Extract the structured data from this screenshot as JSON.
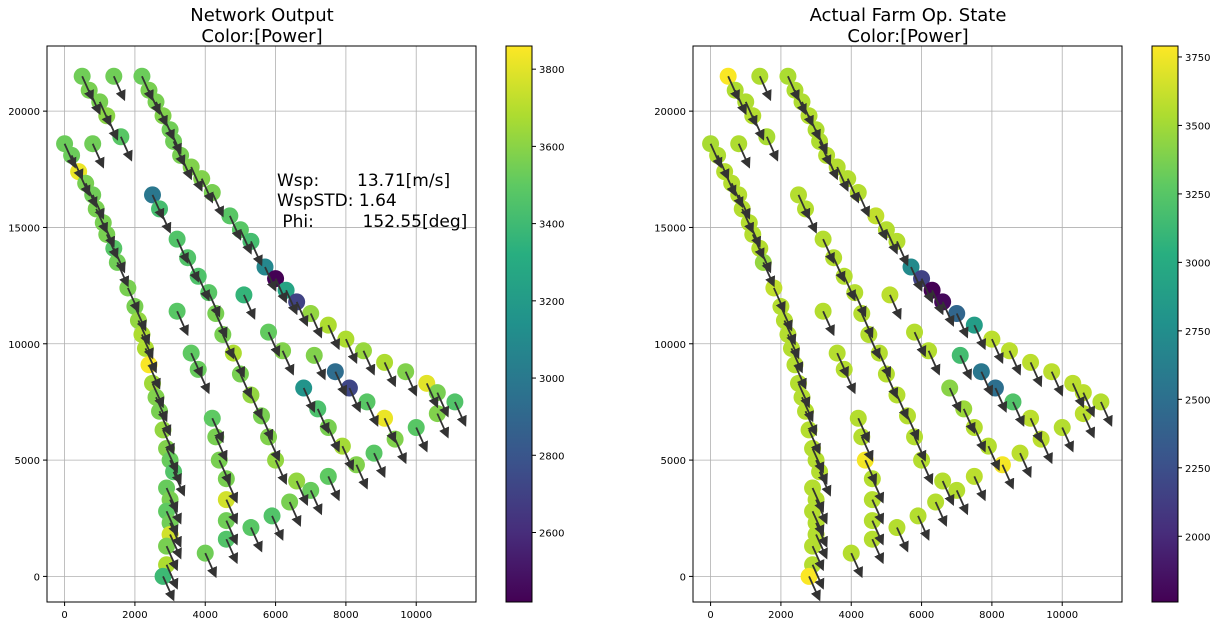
{
  "chart_data": [
    {
      "type": "scatter",
      "title": "Network Output",
      "subtitle": "Color:[Power]",
      "xlim": [
        -500,
        11700
      ],
      "ylim": [
        -1100,
        22800
      ],
      "xticks": [
        0,
        2000,
        4000,
        6000,
        8000,
        10000
      ],
      "yticks": [
        0,
        5000,
        10000,
        15000,
        20000
      ],
      "grid": true,
      "colorbar": {
        "colormap": "viridis",
        "range": [
          2420,
          3860
        ],
        "ticks": [
          2600,
          2800,
          3000,
          3200,
          3400,
          3600,
          3800
        ]
      },
      "annotation": {
        "lines": [
          "Wsp:       13.71[m/s]",
          "WspSTD: 1.64",
          " Phi:         152.55[deg]"
        ]
      },
      "arrow_direction": "down-right",
      "points": [
        [
          500,
          21500,
          3540
        ],
        [
          1400,
          21500,
          3540
        ],
        [
          2200,
          21500,
          3530
        ],
        [
          700,
          20900,
          3560
        ],
        [
          2400,
          20900,
          3560
        ],
        [
          1000,
          20400,
          3560
        ],
        [
          2600,
          20400,
          3560
        ],
        [
          1200,
          19800,
          3600
        ],
        [
          2800,
          19800,
          3580
        ],
        [
          1600,
          18900,
          3480
        ],
        [
          3000,
          19200,
          3540
        ],
        [
          3100,
          18700,
          3540
        ],
        [
          0,
          18600,
          3530
        ],
        [
          800,
          18600,
          3540
        ],
        [
          200,
          18100,
          3530
        ],
        [
          3300,
          18100,
          3560
        ],
        [
          400,
          17400,
          3820
        ],
        [
          3600,
          17600,
          3580
        ],
        [
          600,
          16900,
          3560
        ],
        [
          3900,
          17100,
          3580
        ],
        [
          800,
          16400,
          3540
        ],
        [
          4200,
          16500,
          3560
        ],
        [
          2500,
          16400,
          2990
        ],
        [
          900,
          15800,
          3560
        ],
        [
          2700,
          15800,
          3420
        ],
        [
          1100,
          15200,
          3560
        ],
        [
          4700,
          15500,
          3480
        ],
        [
          1200,
          14700,
          3560
        ],
        [
          5000,
          14900,
          3480
        ],
        [
          1400,
          14100,
          3470
        ],
        [
          3200,
          14500,
          3460
        ],
        [
          5300,
          14400,
          3420
        ],
        [
          1500,
          13500,
          3540
        ],
        [
          3500,
          13700,
          3460
        ],
        [
          5700,
          13300,
          3080
        ],
        [
          6000,
          12800,
          2420
        ],
        [
          3800,
          12900,
          3450
        ],
        [
          1800,
          12400,
          3560
        ],
        [
          4100,
          12200,
          3480
        ],
        [
          6300,
          12300,
          3260
        ],
        [
          5100,
          12100,
          3360
        ],
        [
          6600,
          11800,
          2700
        ],
        [
          2000,
          11600,
          3560
        ],
        [
          3200,
          11400,
          3480
        ],
        [
          4300,
          11300,
          3560
        ],
        [
          7000,
          11300,
          3620
        ],
        [
          2100,
          11000,
          3620
        ],
        [
          2200,
          10400,
          3680
        ],
        [
          4500,
          10400,
          3560
        ],
        [
          5800,
          10500,
          3510
        ],
        [
          7500,
          10800,
          3680
        ],
        [
          2300,
          9800,
          3680
        ],
        [
          8000,
          10200,
          3680
        ],
        [
          3600,
          9600,
          3500
        ],
        [
          4800,
          9600,
          3680
        ],
        [
          6200,
          9700,
          3580
        ],
        [
          7100,
          9500,
          3580
        ],
        [
          8500,
          9700,
          3630
        ],
        [
          2400,
          9100,
          3850
        ],
        [
          9100,
          9200,
          3680
        ],
        [
          3800,
          8900,
          3520
        ],
        [
          7700,
          8800,
          2930
        ],
        [
          9700,
          8800,
          3580
        ],
        [
          2500,
          8300,
          3650
        ],
        [
          5000,
          8700,
          3560
        ],
        [
          10300,
          8300,
          3800
        ],
        [
          6800,
          8100,
          3160
        ],
        [
          8100,
          8100,
          2720
        ],
        [
          2600,
          7700,
          3580
        ],
        [
          5300,
          7800,
          3620
        ],
        [
          11100,
          7500,
          3460
        ],
        [
          8600,
          7500,
          3480
        ],
        [
          10600,
          7900,
          3560
        ],
        [
          7200,
          7200,
          3440
        ],
        [
          2700,
          7100,
          3560
        ],
        [
          4200,
          6800,
          3500
        ],
        [
          5600,
          6900,
          3560
        ],
        [
          9100,
          6800,
          3820
        ],
        [
          10600,
          7000,
          3580
        ],
        [
          2800,
          6300,
          3620
        ],
        [
          7500,
          6400,
          3560
        ],
        [
          10000,
          6400,
          3480
        ],
        [
          4300,
          6000,
          3560
        ],
        [
          5800,
          6000,
          3580
        ],
        [
          9400,
          5900,
          3580
        ],
        [
          2900,
          5500,
          3580
        ],
        [
          7900,
          5600,
          3660
        ],
        [
          3000,
          5000,
          3520
        ],
        [
          4400,
          5000,
          3560
        ],
        [
          6000,
          5000,
          3620
        ],
        [
          8300,
          4800,
          3580
        ],
        [
          8800,
          5300,
          3480
        ],
        [
          3100,
          4500,
          3460
        ],
        [
          6600,
          4100,
          3620
        ],
        [
          7500,
          4300,
          3500
        ],
        [
          4600,
          4200,
          3560
        ],
        [
          2900,
          3800,
          3520
        ],
        [
          7000,
          3700,
          3520
        ],
        [
          3000,
          3300,
          3560
        ],
        [
          4600,
          3300,
          3760
        ],
        [
          6400,
          3200,
          3560
        ],
        [
          2900,
          2800,
          3500
        ],
        [
          4600,
          2400,
          3540
        ],
        [
          5300,
          2100,
          3480
        ],
        [
          5900,
          2600,
          3460
        ],
        [
          3000,
          2300,
          3540
        ],
        [
          3000,
          1800,
          3760
        ],
        [
          4600,
          1600,
          3460
        ],
        [
          2900,
          1300,
          3560
        ],
        [
          4000,
          1000,
          3540
        ],
        [
          2900,
          500,
          3680
        ],
        [
          2800,
          0,
          3390
        ]
      ]
    },
    {
      "type": "scatter",
      "title": "Actual Farm Op. State",
      "subtitle": "Color:[Power]",
      "xlim": [
        -500,
        11700
      ],
      "ylim": [
        -1100,
        22800
      ],
      "xticks": [
        0,
        2000,
        4000,
        6000,
        8000,
        10000
      ],
      "yticks": [
        0,
        5000,
        10000,
        15000,
        20000
      ],
      "grid": true,
      "colorbar": {
        "colormap": "viridis",
        "range": [
          1760,
          3790
        ],
        "ticks": [
          2000,
          2250,
          2500,
          2750,
          3000,
          3250,
          3500,
          3750
        ]
      },
      "arrow_direction": "down-right",
      "points": [
        [
          500,
          21500,
          3780
        ],
        [
          1400,
          21500,
          3540
        ],
        [
          2200,
          21500,
          3530
        ],
        [
          700,
          20900,
          3540
        ],
        [
          2400,
          20900,
          3540
        ],
        [
          1000,
          20400,
          3540
        ],
        [
          2600,
          20400,
          3540
        ],
        [
          1200,
          19800,
          3560
        ],
        [
          2800,
          19800,
          3560
        ],
        [
          1600,
          18900,
          3520
        ],
        [
          3000,
          19200,
          3540
        ],
        [
          3100,
          18700,
          3540
        ],
        [
          0,
          18600,
          3520
        ],
        [
          800,
          18600,
          3540
        ],
        [
          200,
          18100,
          3540
        ],
        [
          3300,
          18100,
          3560
        ],
        [
          400,
          17400,
          3560
        ],
        [
          3600,
          17600,
          3560
        ],
        [
          600,
          16900,
          3560
        ],
        [
          3900,
          17100,
          3560
        ],
        [
          800,
          16400,
          3560
        ],
        [
          4200,
          16500,
          3560
        ],
        [
          2500,
          16400,
          3560
        ],
        [
          900,
          15800,
          3560
        ],
        [
          2700,
          15800,
          3560
        ],
        [
          1100,
          15200,
          3560
        ],
        [
          4700,
          15500,
          3600
        ],
        [
          1200,
          14700,
          3560
        ],
        [
          5000,
          14900,
          3560
        ],
        [
          1400,
          14100,
          3560
        ],
        [
          3200,
          14500,
          3560
        ],
        [
          5300,
          14400,
          3560
        ],
        [
          1500,
          13500,
          3460
        ],
        [
          3500,
          13700,
          3560
        ],
        [
          5700,
          13300,
          2720
        ],
        [
          6000,
          12800,
          2160
        ],
        [
          3800,
          12900,
          3560
        ],
        [
          1800,
          12400,
          3600
        ],
        [
          4100,
          12200,
          3560
        ],
        [
          6300,
          12300,
          1760
        ],
        [
          5100,
          12100,
          3580
        ],
        [
          6600,
          11800,
          1800
        ],
        [
          2000,
          11600,
          3560
        ],
        [
          3200,
          11400,
          3560
        ],
        [
          4300,
          11300,
          3560
        ],
        [
          7000,
          11300,
          2430
        ],
        [
          2100,
          11000,
          3560
        ],
        [
          2200,
          10400,
          3560
        ],
        [
          4500,
          10400,
          3560
        ],
        [
          5800,
          10500,
          3560
        ],
        [
          7500,
          10800,
          2880
        ],
        [
          2300,
          9800,
          3560
        ],
        [
          8000,
          10200,
          3580
        ],
        [
          3600,
          9600,
          3560
        ],
        [
          4800,
          9600,
          3560
        ],
        [
          6200,
          9700,
          3560
        ],
        [
          7100,
          9500,
          3160
        ],
        [
          8500,
          9700,
          3580
        ],
        [
          2400,
          9100,
          3560
        ],
        [
          9100,
          9200,
          3580
        ],
        [
          3800,
          8900,
          3560
        ],
        [
          7700,
          8800,
          2560
        ],
        [
          9700,
          8800,
          3580
        ],
        [
          2500,
          8300,
          3560
        ],
        [
          5000,
          8700,
          3560
        ],
        [
          10300,
          8300,
          3580
        ],
        [
          6800,
          8100,
          3420
        ],
        [
          8100,
          8100,
          2500
        ],
        [
          2600,
          7700,
          3560
        ],
        [
          5300,
          7800,
          3560
        ],
        [
          11100,
          7500,
          3560
        ],
        [
          8600,
          7500,
          3220
        ],
        [
          10600,
          7900,
          3580
        ],
        [
          7200,
          7200,
          3480
        ],
        [
          2700,
          7100,
          3560
        ],
        [
          4200,
          6800,
          3560
        ],
        [
          5600,
          6900,
          3560
        ],
        [
          9100,
          6800,
          3580
        ],
        [
          10600,
          7000,
          3580
        ],
        [
          2800,
          6300,
          3560
        ],
        [
          7500,
          6400,
          3560
        ],
        [
          10000,
          6400,
          3560
        ],
        [
          4300,
          6000,
          3560
        ],
        [
          5800,
          6000,
          3560
        ],
        [
          9400,
          5900,
          3580
        ],
        [
          2900,
          5500,
          3560
        ],
        [
          7900,
          5600,
          3560
        ],
        [
          3000,
          5000,
          3560
        ],
        [
          4400,
          5000,
          3760
        ],
        [
          6000,
          5000,
          3560
        ],
        [
          8300,
          4800,
          3760
        ],
        [
          8800,
          5300,
          3580
        ],
        [
          3100,
          4500,
          3560
        ],
        [
          6600,
          4100,
          3560
        ],
        [
          7500,
          4300,
          3580
        ],
        [
          4600,
          4200,
          3560
        ],
        [
          2900,
          3800,
          3560
        ],
        [
          7000,
          3700,
          3560
        ],
        [
          3000,
          3300,
          3560
        ],
        [
          4600,
          3300,
          3560
        ],
        [
          6400,
          3200,
          3560
        ],
        [
          2900,
          2800,
          3560
        ],
        [
          4600,
          2400,
          3560
        ],
        [
          5300,
          2100,
          3560
        ],
        [
          5900,
          2600,
          3560
        ],
        [
          3000,
          2300,
          3560
        ],
        [
          3000,
          1800,
          3560
        ],
        [
          4600,
          1600,
          3560
        ],
        [
          2900,
          1300,
          3560
        ],
        [
          4000,
          1000,
          3560
        ],
        [
          2900,
          500,
          3560
        ],
        [
          2800,
          0,
          3780
        ]
      ]
    }
  ]
}
